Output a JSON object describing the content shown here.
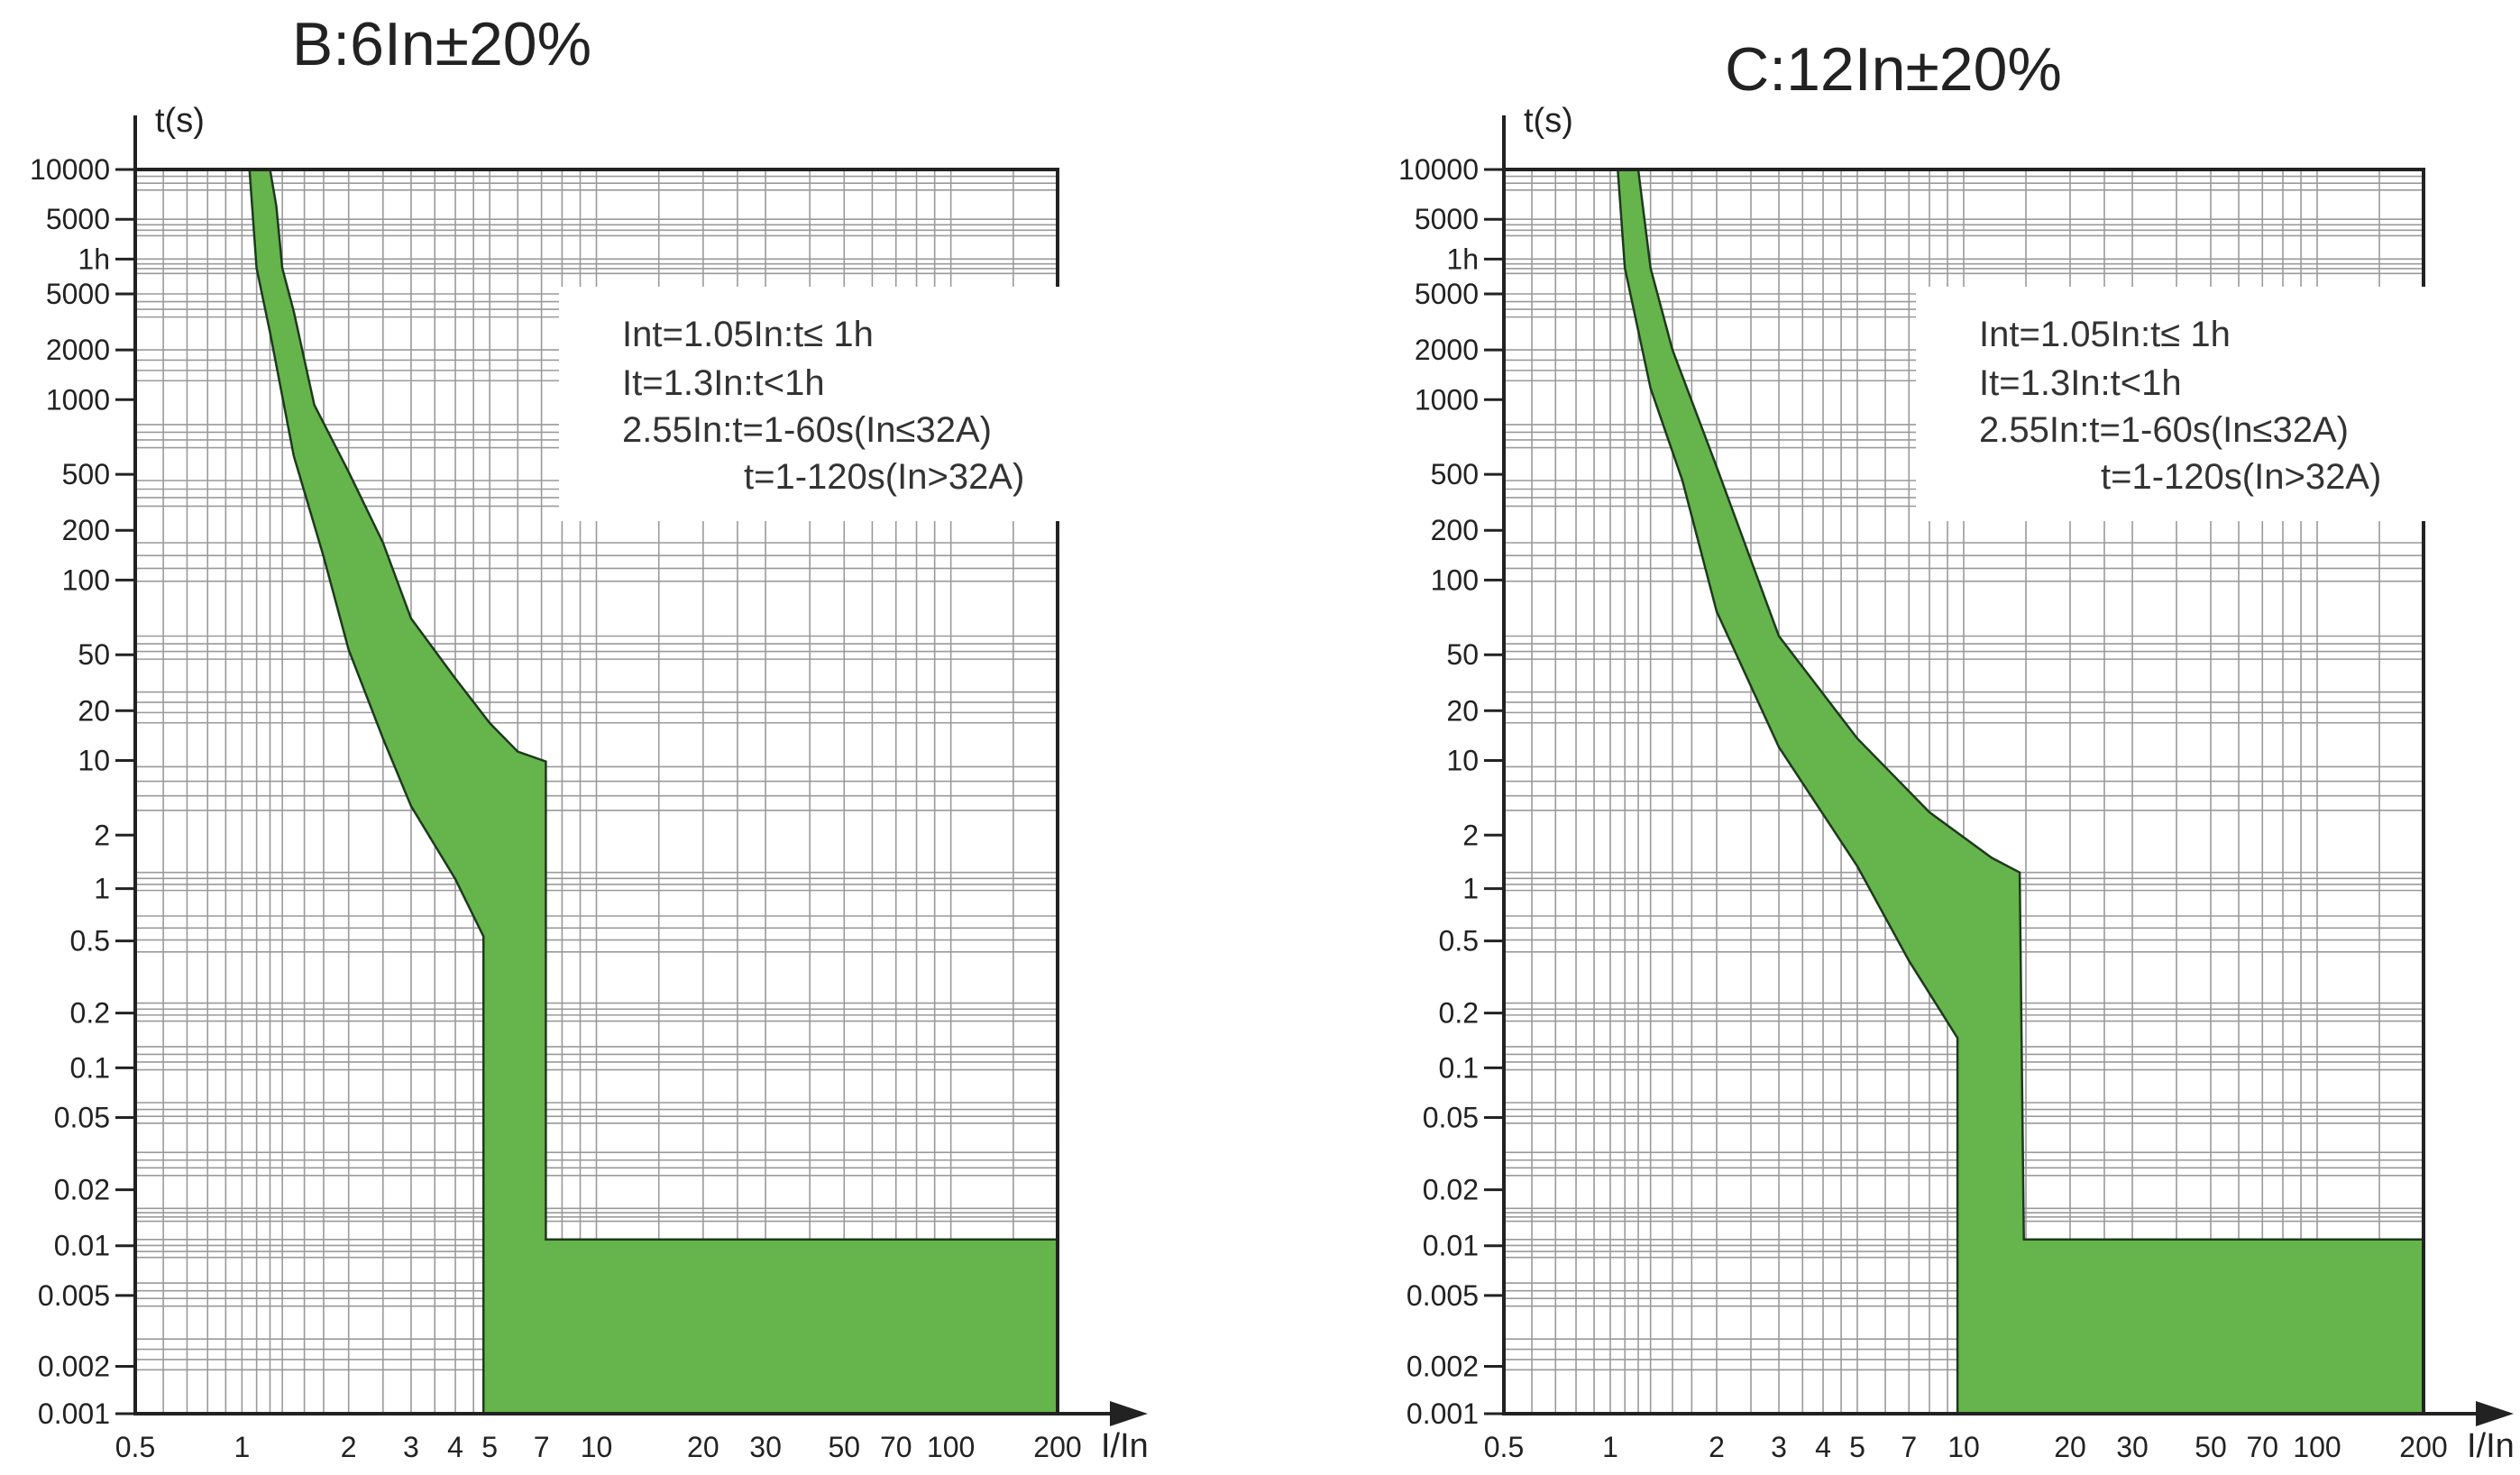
{
  "chart_data": [
    {
      "type": "area",
      "title": "B:6In±20%",
      "xlabel": "I/In",
      "ylabel": "t(s)",
      "xscale": "log",
      "yscale": "log",
      "xlim": [
        0.5,
        200
      ],
      "ylim": [
        0.001,
        10000
      ],
      "grid": true,
      "fill_color": "#66b44c",
      "x_tick_labels": [
        "0.5",
        "1",
        "2",
        "3",
        "4",
        "5",
        "7",
        "10",
        "20",
        "30",
        "50",
        "70",
        "100",
        "200"
      ],
      "y_tick_labels": [
        "10000",
        "5000",
        "1h",
        "5000",
        "2000",
        "1000",
        "500",
        "200",
        "100",
        "50",
        "20",
        "10",
        "2",
        "1",
        "0.5",
        "0.2",
        "0.1",
        "0.05",
        "0.02",
        "0.01",
        "0.005",
        "0.002",
        "0.001"
      ],
      "annotations": [
        "Int=1.05In:t≤ 1h",
        "It=1.3In:t<1h",
        "2.55In:t=1-60s(In≤32A)",
        "t=1-120s(In>32A)"
      ],
      "band": {
        "upper": [
          [
            1.2,
            10000
          ],
          [
            1.25,
            6000
          ],
          [
            1.3,
            3000
          ],
          [
            1.4,
            1500
          ],
          [
            1.6,
            600
          ],
          [
            2,
            230
          ],
          [
            2.5,
            100
          ],
          [
            3,
            57
          ],
          [
            4,
            25
          ],
          [
            5,
            15
          ],
          [
            6,
            11.5
          ],
          [
            7.2,
            10.5
          ],
          [
            7.2,
            0.01
          ],
          [
            200,
            0.01
          ]
        ],
        "lower": [
          [
            1.05,
            10000
          ],
          [
            1.1,
            3000
          ],
          [
            1.2,
            1200
          ],
          [
            1.4,
            300
          ],
          [
            1.7,
            90
          ],
          [
            2,
            40
          ],
          [
            2.5,
            13
          ],
          [
            3,
            5.5
          ],
          [
            4,
            1.8
          ],
          [
            4.8,
            0.85
          ],
          [
            4.8,
            0.001
          ],
          [
            200,
            0.001
          ]
        ]
      }
    },
    {
      "type": "area",
      "title": "C:12In±20%",
      "xlabel": "I/In",
      "ylabel": "t(s)",
      "xscale": "log",
      "yscale": "log",
      "xlim": [
        0.5,
        200
      ],
      "ylim": [
        0.001,
        10000
      ],
      "grid": true,
      "fill_color": "#66b44c",
      "x_tick_labels": [
        "0.5",
        "1",
        "2",
        "3",
        "4",
        "5",
        "7",
        "10",
        "20",
        "30",
        "50",
        "70",
        "100",
        "200"
      ],
      "y_tick_labels": [
        "10000",
        "5000",
        "1h",
        "5000",
        "2000",
        "1000",
        "500",
        "200",
        "100",
        "50",
        "20",
        "10",
        "2",
        "1",
        "0.5",
        "0.2",
        "0.1",
        "0.05",
        "0.02",
        "0.01",
        "0.005",
        "0.002",
        "0.001"
      ],
      "annotations": [
        "Int=1.05In:t≤ 1h",
        "It=1.3In:t<1h",
        "2.55In:t=1-60s(In≤32A)",
        "t=1-120s(In>32A)"
      ],
      "band": {
        "upper": [
          [
            1.2,
            10000
          ],
          [
            1.3,
            3000
          ],
          [
            1.5,
            1000
          ],
          [
            2,
            250
          ],
          [
            3,
            50
          ],
          [
            5,
            13
          ],
          [
            8,
            5
          ],
          [
            12,
            2.5
          ],
          [
            14.4,
            2
          ],
          [
            14.8,
            0.01
          ],
          [
            200,
            0.01
          ]
        ],
        "lower": [
          [
            1.05,
            10000
          ],
          [
            1.1,
            3000
          ],
          [
            1.3,
            700
          ],
          [
            1.6,
            200
          ],
          [
            2,
            60
          ],
          [
            3,
            12
          ],
          [
            5,
            2.2
          ],
          [
            7,
            0.7
          ],
          [
            9.6,
            0.24
          ],
          [
            9.6,
            0.001
          ],
          [
            200,
            0.001
          ]
        ]
      }
    }
  ]
}
